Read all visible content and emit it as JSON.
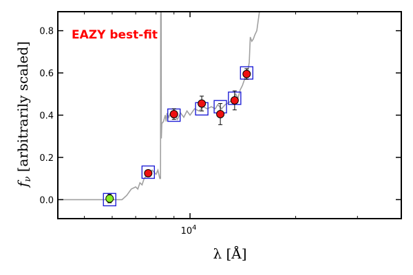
{
  "chart_data": {
    "type": "scatter",
    "title": "",
    "xlabel": "λ [Å]",
    "ylabel": "f",
    "ylabel_sub": "ν",
    "ylabel_rest": " [arbitrarily scaled]",
    "x_scale": "log",
    "xlim": [
      4200,
      40000
    ],
    "ylim": [
      -0.09,
      0.89
    ],
    "y_ticks": [
      0.0,
      0.2,
      0.4,
      0.6,
      0.8
    ],
    "y_tick_labels": [
      "0.0",
      "0.2",
      "0.4",
      "0.6",
      "0.8"
    ],
    "x_tick_label": {
      "base": "10",
      "exp": "4",
      "value": 10000
    },
    "x_minor_ticks": [
      5000,
      6000,
      7000,
      8000,
      9000,
      20000,
      30000
    ],
    "grid": false,
    "annotation": {
      "text": "EAZY best-fit",
      "color": "#ff0000"
    },
    "colors": {
      "model": "#a0a0a0",
      "model_box": "#1f1fd6",
      "observed": "#ee1111",
      "non_detection": "#88ee22"
    },
    "observed": [
      {
        "x": 5900,
        "y": 0.005,
        "err": 0.02,
        "detected": false
      },
      {
        "x": 7600,
        "y": 0.125,
        "err": 0.015,
        "detected": true
      },
      {
        "x": 9000,
        "y": 0.405,
        "err": 0.025,
        "detected": true
      },
      {
        "x": 10800,
        "y": 0.455,
        "err": 0.035,
        "detected": true
      },
      {
        "x": 12200,
        "y": 0.405,
        "err": 0.05,
        "detected": true
      },
      {
        "x": 13400,
        "y": 0.47,
        "err": 0.045,
        "detected": true
      },
      {
        "x": 14500,
        "y": 0.595,
        "err": 0.025,
        "detected": true
      }
    ],
    "model_photometry": [
      {
        "x": 5900,
        "y": 0.0
      },
      {
        "x": 7600,
        "y": 0.13
      },
      {
        "x": 9000,
        "y": 0.4
      },
      {
        "x": 10800,
        "y": 0.43
      },
      {
        "x": 12200,
        "y": 0.44
      },
      {
        "x": 13400,
        "y": 0.48
      },
      {
        "x": 14500,
        "y": 0.6
      }
    ],
    "model_spectrum": [
      [
        4200,
        0.0
      ],
      [
        6400,
        0.0
      ],
      [
        6600,
        0.02
      ],
      [
        6800,
        0.05
      ],
      [
        7000,
        0.06
      ],
      [
        7100,
        0.05
      ],
      [
        7200,
        0.08
      ],
      [
        7300,
        0.07
      ],
      [
        7400,
        0.1
      ],
      [
        7600,
        0.12
      ],
      [
        7800,
        0.14
      ],
      [
        8000,
        0.12
      ],
      [
        8100,
        0.14
      ],
      [
        8200,
        0.1
      ],
      [
        8240,
        0.1
      ],
      [
        8250,
        0.95
      ],
      [
        8275,
        0.95
      ],
      [
        8285,
        0.29
      ],
      [
        8310,
        0.36
      ],
      [
        8400,
        0.37
      ],
      [
        8500,
        0.4
      ],
      [
        8550,
        0.37
      ],
      [
        8600,
        0.41
      ],
      [
        8700,
        0.39
      ],
      [
        8800,
        0.41
      ],
      [
        8900,
        0.39
      ],
      [
        9000,
        0.41
      ],
      [
        9200,
        0.38
      ],
      [
        9400,
        0.41
      ],
      [
        9600,
        0.39
      ],
      [
        9800,
        0.42
      ],
      [
        10000,
        0.4
      ],
      [
        10300,
        0.43
      ],
      [
        10600,
        0.42
      ],
      [
        10900,
        0.44
      ],
      [
        11200,
        0.43
      ],
      [
        11500,
        0.44
      ],
      [
        11800,
        0.43
      ],
      [
        12000,
        0.45
      ],
      [
        12300,
        0.43
      ],
      [
        12600,
        0.45
      ],
      [
        12900,
        0.46
      ],
      [
        13200,
        0.47
      ],
      [
        13500,
        0.5
      ],
      [
        13700,
        0.48
      ],
      [
        13900,
        0.52
      ],
      [
        14100,
        0.54
      ],
      [
        14300,
        0.57
      ],
      [
        14500,
        0.6
      ],
      [
        14650,
        0.62
      ],
      [
        14750,
        0.65
      ],
      [
        14850,
        0.77
      ],
      [
        15000,
        0.75
      ],
      [
        15150,
        0.76
      ],
      [
        15300,
        0.78
      ],
      [
        15500,
        0.8
      ],
      [
        15800,
        0.9
      ],
      [
        16200,
        0.95
      ]
    ]
  }
}
